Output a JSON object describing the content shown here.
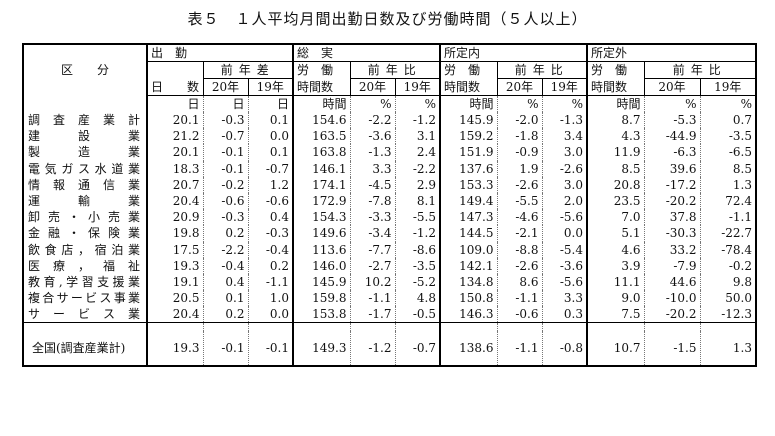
{
  "title": "表５　１人平均月間出勤日数及び労働時間（５人以上）",
  "header": {
    "category": "区　　分",
    "groups": [
      {
        "top": "出　勤",
        "mid": "",
        "bottom": "日　　数",
        "diff": "前年差"
      },
      {
        "top": "総　実",
        "mid": "労　働",
        "bottom": "時間数",
        "diff": "前年比"
      },
      {
        "top": "所定内",
        "mid": "労　働",
        "bottom": "時間数",
        "diff": "前年比"
      },
      {
        "top": "所定外",
        "mid": "労　働",
        "bottom": "時間数",
        "diff": "前年比"
      }
    ],
    "years": [
      "20年",
      "19年"
    ]
  },
  "units": [
    "日",
    "日",
    "日",
    "時間",
    "%",
    "%",
    "時間",
    "%",
    "%",
    "時間",
    "%",
    "%"
  ],
  "rows": [
    {
      "label": "調査産業計",
      "v": [
        "20.1",
        "-0.3",
        "0.1",
        "154.6",
        "-2.2",
        "-1.2",
        "145.9",
        "-2.0",
        "-1.3",
        "8.7",
        "-5.3",
        "0.7"
      ]
    },
    {
      "label": "建設業",
      "v": [
        "21.2",
        "-0.7",
        "0.0",
        "163.5",
        "-3.6",
        "3.1",
        "159.2",
        "-1.8",
        "3.4",
        "4.3",
        "-44.9",
        "-3.5"
      ]
    },
    {
      "label": "製造業",
      "v": [
        "20.1",
        "-0.1",
        "0.1",
        "163.8",
        "-1.3",
        "2.4",
        "151.9",
        "-0.9",
        "3.0",
        "11.9",
        "-6.3",
        "-6.5"
      ]
    },
    {
      "label": "電気ガス水道業",
      "v": [
        "18.3",
        "-0.1",
        "-0.7",
        "146.1",
        "3.3",
        "-2.2",
        "137.6",
        "1.9",
        "-2.6",
        "8.5",
        "39.6",
        "8.5"
      ]
    },
    {
      "label": "情報通信業",
      "v": [
        "20.7",
        "-0.2",
        "1.2",
        "174.1",
        "-4.5",
        "2.9",
        "153.3",
        "-2.6",
        "3.0",
        "20.8",
        "-17.2",
        "1.3"
      ]
    },
    {
      "label": "運輸業",
      "v": [
        "20.4",
        "-0.6",
        "-0.6",
        "172.9",
        "-7.8",
        "8.1",
        "149.4",
        "-5.5",
        "2.0",
        "23.5",
        "-20.2",
        "72.4"
      ]
    },
    {
      "label": "卸売・小売業",
      "v": [
        "20.9",
        "-0.3",
        "0.4",
        "154.3",
        "-3.3",
        "-5.5",
        "147.3",
        "-4.6",
        "-5.6",
        "7.0",
        "37.8",
        "-1.1"
      ]
    },
    {
      "label": "金融・保険業",
      "v": [
        "19.8",
        "0.2",
        "-0.3",
        "149.6",
        "-3.4",
        "-1.2",
        "144.5",
        "-2.1",
        "0.0",
        "5.1",
        "-30.3",
        "-22.7"
      ]
    },
    {
      "label": "飲食店，宿泊業",
      "v": [
        "17.5",
        "-2.2",
        "-0.4",
        "113.6",
        "-7.7",
        "-8.6",
        "109.0",
        "-8.8",
        "-5.4",
        "4.6",
        "33.2",
        "-78.4"
      ]
    },
    {
      "label": "医療，福祉",
      "v": [
        "19.3",
        "-0.4",
        "0.2",
        "146.0",
        "-2.7",
        "-3.5",
        "142.1",
        "-2.6",
        "-3.6",
        "3.9",
        "-7.9",
        "-0.2"
      ]
    },
    {
      "label": "教育,学習支援業",
      "v": [
        "19.1",
        "0.4",
        "-1.1",
        "145.9",
        "10.2",
        "-5.2",
        "134.8",
        "8.6",
        "-5.6",
        "11.1",
        "44.6",
        "9.8"
      ]
    },
    {
      "label": "複合サービス事業",
      "v": [
        "20.5",
        "0.1",
        "1.0",
        "159.8",
        "-1.1",
        "4.8",
        "150.8",
        "-1.1",
        "3.3",
        "9.0",
        "-10.0",
        "50.0"
      ]
    },
    {
      "label": "サービス業",
      "v": [
        "20.4",
        "0.2",
        "0.0",
        "153.8",
        "-1.7",
        "-0.5",
        "146.3",
        "-0.6",
        "0.3",
        "7.5",
        "-20.2",
        "-12.3"
      ]
    }
  ],
  "total": {
    "label": "全国(調査産業計)",
    "v": [
      "19.3",
      "-0.1",
      "-0.1",
      "149.3",
      "-1.2",
      "-0.7",
      "138.6",
      "-1.1",
      "-0.8",
      "10.7",
      "-1.5",
      "1.3"
    ]
  }
}
